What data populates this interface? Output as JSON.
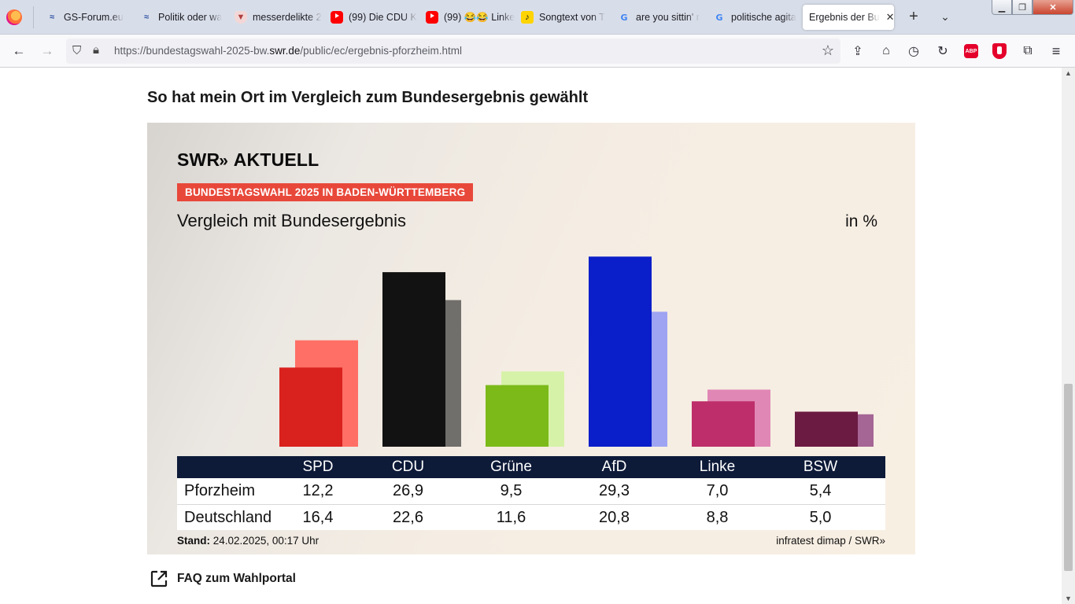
{
  "browser": {
    "tabs": [
      {
        "title": "GS-Forum.eu",
        "icon": "gs-forum-icon"
      },
      {
        "title": "Politik oder wa",
        "icon": "gs-forum-icon"
      },
      {
        "title": "messerdelikte 2",
        "icon": "shield-icon"
      },
      {
        "title": "(99) Die CDU K",
        "icon": "youtube-icon"
      },
      {
        "title": "(99) 😂😂 Linke",
        "icon": "youtube-icon"
      },
      {
        "title": "Songtext von T",
        "icon": "songtext-icon"
      },
      {
        "title": "are you sittin' r",
        "icon": "google-icon"
      },
      {
        "title": "politische agita",
        "icon": "google-icon"
      },
      {
        "title": "Ergebnis der Bu",
        "icon": "none",
        "active": true
      }
    ],
    "url_prefix": "https://bundestagswahl-2025-bw.",
    "url_domain": "swr.de",
    "url_suffix": "/public/ec/ergebnis-pforzheim.html"
  },
  "page": {
    "heading": "So hat mein Ort im Vergleich zum Bundesergebnis gewählt",
    "faq_link": "FAQ zum Wahlportal"
  },
  "card": {
    "logo_text": "SWR",
    "logo_chevrons": "»",
    "logo_suffix": "AKTUELL",
    "banner": "BUNDESTAGSWAHL 2025 IN BADEN-WÜRTTEMBERG",
    "title": "Vergleich mit Bundesergebnis",
    "unit": "in %",
    "footer_label": "Stand:",
    "footer_date": "24.02.2025, 00:17 Uhr",
    "source": "infratest dimap / SWR»"
  },
  "chart_data": {
    "type": "bar",
    "title": "Vergleich mit Bundesergebnis",
    "ylabel": "in %",
    "ylim": [
      0,
      30
    ],
    "categories": [
      "SPD",
      "CDU",
      "Grüne",
      "AfD",
      "Linke",
      "BSW"
    ],
    "series": [
      {
        "name": "Pforzheim",
        "values": [
          12.2,
          26.9,
          9.5,
          29.3,
          7.0,
          5.4
        ],
        "display": [
          "12,2",
          "26,9",
          "9,5",
          "29,3",
          "7,0",
          "5,4"
        ]
      },
      {
        "name": "Deutschland",
        "values": [
          16.4,
          22.6,
          11.6,
          20.8,
          8.8,
          5.0
        ],
        "display": [
          "16,4",
          "22,6",
          "11,6",
          "20,8",
          "8,8",
          "5,0"
        ]
      }
    ],
    "colors_local": [
      "#d9211e",
      "#121212",
      "#7cba1a",
      "#0a1ec9",
      "#bd2e6a",
      "#6b1a42"
    ],
    "colors_national": [
      "#ff6f66",
      "#716f6b",
      "#d6f2a8",
      "#9ea4f2",
      "#e187b6",
      "#a56595"
    ]
  }
}
